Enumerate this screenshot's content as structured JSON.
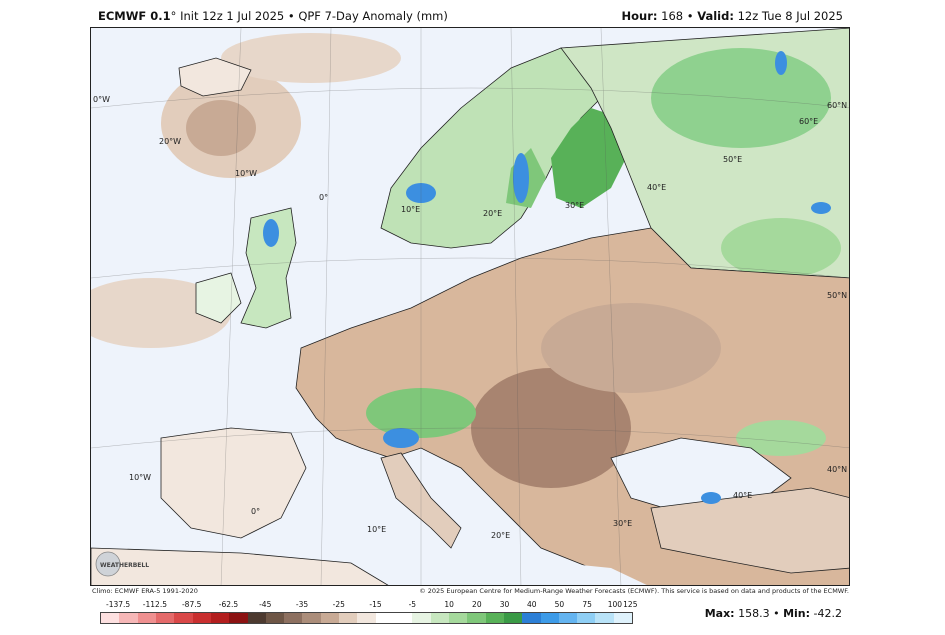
{
  "header": {
    "model": "ECMWF 0.1",
    "degree": "°",
    "init": "Init 12z 1 Jul 2025",
    "bullet": "•",
    "product": "QPF 7-Day Anomaly (mm)",
    "hour_label": "Hour:",
    "hour_value": "168",
    "valid_label": "Valid:",
    "valid_value": "12z Tue 8 Jul 2025"
  },
  "map": {
    "lon_labels": [
      "0°W",
      "20°W",
      "10°W",
      "0°",
      "10°E",
      "20°E",
      "30°E",
      "40°E",
      "50°E",
      "60°E",
      "10°W",
      "0°",
      "10°E",
      "20°E",
      "30°E",
      "40°E"
    ],
    "lat_labels": [
      "60°N",
      "50°N",
      "40°N"
    ],
    "logo_text": "WEATHERBELL",
    "colors": {
      "ocean": "#eef3fb",
      "dry": "#d8b79c",
      "very_dry": "#a88470",
      "wet": "#8fd18f",
      "very_wet": "#3c8fe0",
      "border": "#222222"
    }
  },
  "credits": {
    "climo": "Climo: ECMWF ERA-5 1991-2020",
    "copyright": "© 2025 European Centre for Medium-Range Weather Forecasts (ECMWF). This service is based on data and products of the ECMWF."
  },
  "colorbar": {
    "ticks": [
      "-137.5",
      "-112.5",
      "-87.5",
      "-62.5",
      "-45",
      "-35",
      "-25",
      "-15",
      "-5",
      "10",
      "20",
      "30",
      "40",
      "50",
      "75",
      "100",
      "125"
    ],
    "colors": [
      "#fde0e0",
      "#f6b7b7",
      "#ef9090",
      "#e46a6a",
      "#d94848",
      "#c92f2f",
      "#b31e1e",
      "#8c1212",
      "#4d3a30",
      "#6e5646",
      "#8d7060",
      "#ab8d7a",
      "#c8aa95",
      "#e2cdbc",
      "#f2e7de",
      "#ffffff",
      "#ffffff",
      "#e7f4e3",
      "#c7e7bf",
      "#a5d99c",
      "#7fc77a",
      "#58b158",
      "#3a9a46",
      "#2c7fd6",
      "#3d9be8",
      "#64b4f0",
      "#8fcff5",
      "#b9e3f8",
      "#dff2fc"
    ]
  },
  "stats": {
    "max_label": "Max:",
    "max_value": "158.3",
    "bullet": "•",
    "min_label": "Min:",
    "min_value": "-42.2"
  }
}
